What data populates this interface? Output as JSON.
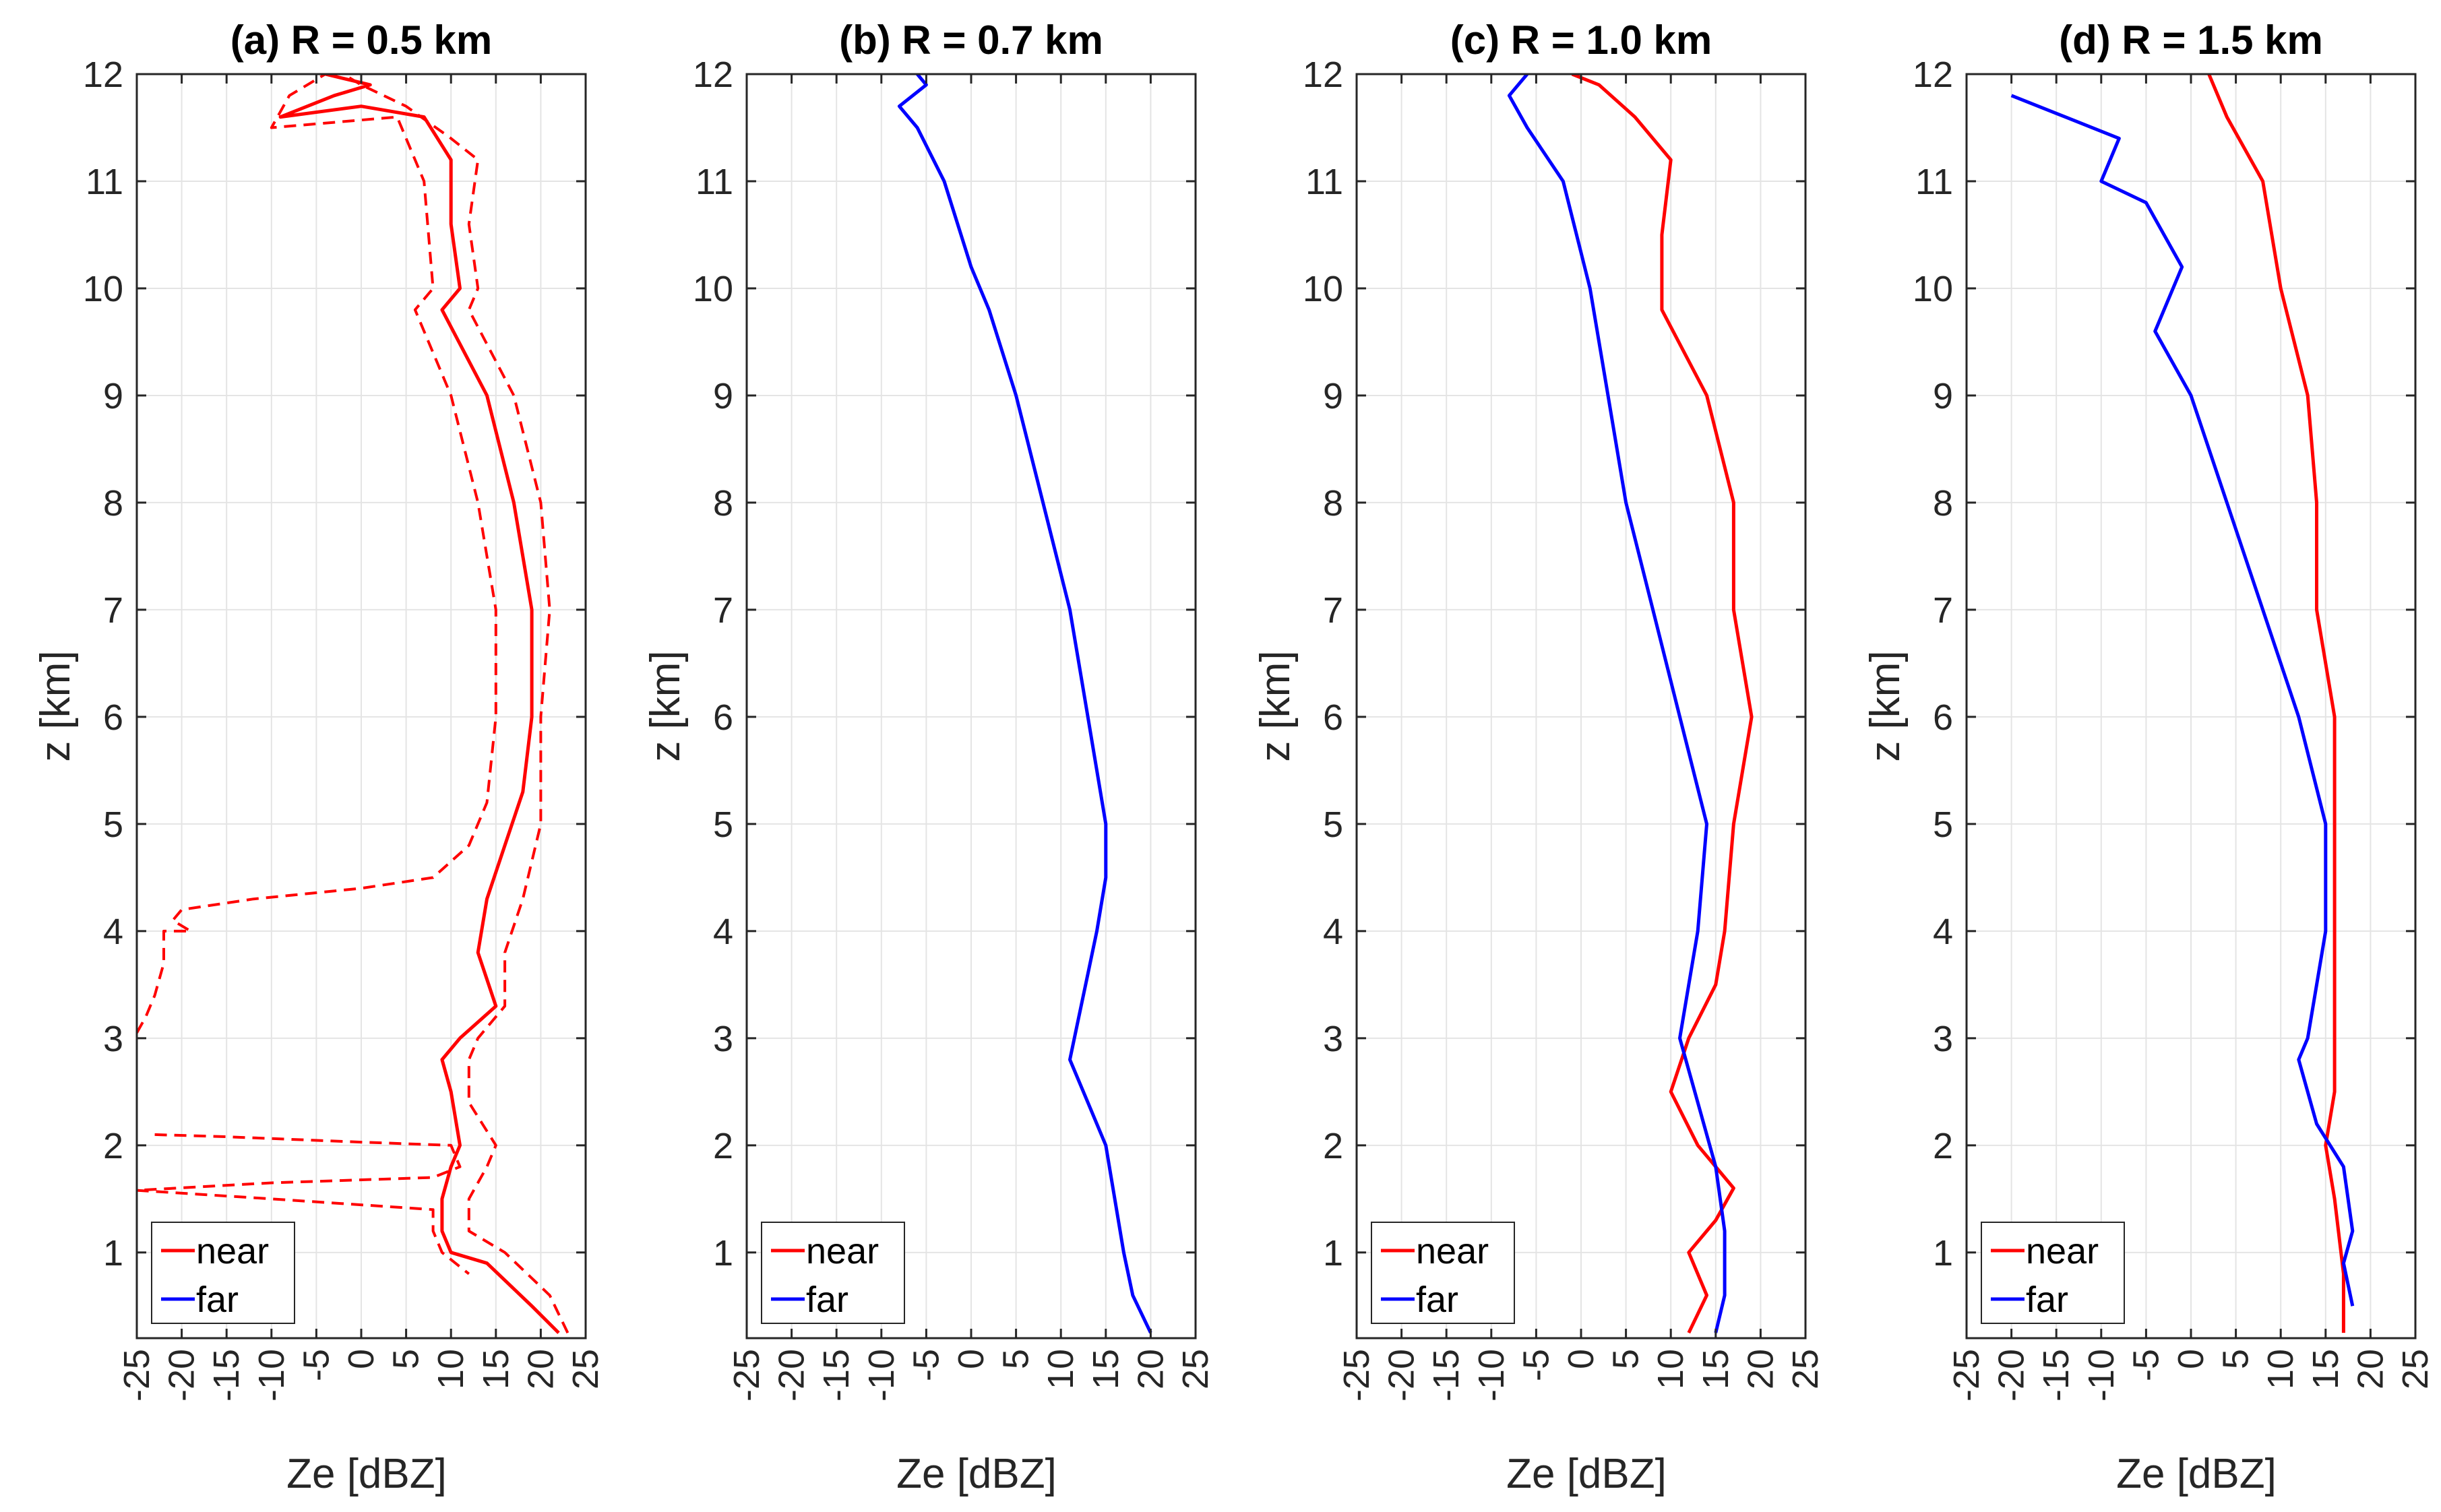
{
  "figure_colors": {
    "near": "#ff0000",
    "far": "#0000ff",
    "grid": "#e4e4e4",
    "axis": "#262626"
  },
  "chart_data": [
    {
      "type": "line",
      "title": "(a) R = 0.5 km",
      "xlabel": "Ze [dBZ]",
      "ylabel": "z [km]",
      "xlim": [
        -25,
        25
      ],
      "ylim": [
        0.2,
        12
      ],
      "xticks": [
        "-25",
        "-20",
        "-15",
        "-10",
        "-5",
        "0",
        "5",
        "10",
        "15",
        "20",
        "25"
      ],
      "yticks": [
        "1",
        "2",
        "3",
        "4",
        "5",
        "6",
        "7",
        "8",
        "9",
        "10",
        "11",
        "12"
      ],
      "grid": true,
      "legend_position": "bottom-left",
      "legend": [
        "near",
        "far"
      ],
      "series": [
        {
          "name": "near",
          "style": "solid",
          "color": "#ff0000",
          "points": [
            [
              22,
              0.25
            ],
            [
              19,
              0.5
            ],
            [
              14,
              0.9
            ],
            [
              10,
              1.0
            ],
            [
              9,
              1.2
            ],
            [
              9,
              1.5
            ],
            [
              10,
              1.8
            ],
            [
              11,
              2.0
            ],
            [
              10,
              2.5
            ],
            [
              9,
              2.8
            ],
            [
              11,
              3.0
            ],
            [
              15,
              3.3
            ],
            [
              13,
              3.8
            ],
            [
              14,
              4.3
            ],
            [
              16,
              4.8
            ],
            [
              18,
              5.3
            ],
            [
              19,
              6.0
            ],
            [
              19,
              7.0
            ],
            [
              17,
              8.0
            ],
            [
              14,
              9.0
            ],
            [
              9,
              9.8
            ],
            [
              11,
              10.0
            ],
            [
              10,
              10.6
            ],
            [
              10,
              11.2
            ],
            [
              7,
              11.6
            ],
            [
              0,
              11.7
            ],
            [
              -9,
              11.6
            ],
            [
              -3,
              11.8
            ],
            [
              1,
              11.9
            ],
            [
              -4,
              12
            ]
          ]
        },
        {
          "name": "near",
          "style": "dashed",
          "color": "#ff0000",
          "points": [
            [
              23,
              0.25
            ],
            [
              21,
              0.6
            ],
            [
              16,
              1.0
            ],
            [
              12,
              1.2
            ],
            [
              12,
              1.5
            ],
            [
              14,
              1.8
            ],
            [
              15,
              2.0
            ],
            [
              12,
              2.4
            ],
            [
              12,
              2.8
            ],
            [
              13,
              3.0
            ],
            [
              16,
              3.3
            ],
            [
              16,
              3.8
            ],
            [
              18,
              4.3
            ],
            [
              20,
              5.0
            ],
            [
              20,
              6.0
            ],
            [
              21,
              7.0
            ],
            [
              20,
              8.0
            ],
            [
              17,
              9.0
            ],
            [
              12,
              9.8
            ],
            [
              13,
              10.0
            ],
            [
              12,
              10.6
            ],
            [
              13,
              11.2
            ],
            [
              10,
              11.4
            ],
            [
              5,
              11.7
            ],
            [
              0,
              11.9
            ],
            [
              -2,
              12
            ]
          ]
        },
        {
          "name": "near",
          "style": "dashed",
          "color": "#ff0000",
          "points": [
            [
              -25,
              3.05
            ],
            [
              -24,
              3.2
            ],
            [
              -23,
              3.4
            ],
            [
              -22,
              3.7
            ],
            [
              -22,
              4.0
            ],
            [
              -19,
              4.0
            ],
            [
              -21,
              4.1
            ],
            [
              -20,
              4.2
            ],
            [
              -12,
              4.3
            ],
            [
              0,
              4.4
            ],
            [
              8,
              4.5
            ],
            [
              12,
              4.8
            ],
            [
              14,
              5.2
            ],
            [
              15,
              6.0
            ],
            [
              15,
              7.0
            ],
            [
              13,
              8.0
            ],
            [
              10,
              9.0
            ],
            [
              6,
              9.8
            ],
            [
              8,
              10.0
            ],
            [
              7,
              11.0
            ],
            [
              4,
              11.6
            ],
            [
              -10,
              11.5
            ],
            [
              -8,
              11.8
            ],
            [
              -4,
              12
            ]
          ]
        },
        {
          "name": "near",
          "style": "dashed",
          "color": "#ff0000",
          "points": [
            [
              -23,
              2.1
            ],
            [
              -15,
              2.08
            ],
            [
              0,
              2.03
            ],
            [
              10,
              2.0
            ],
            [
              11,
              1.8
            ],
            [
              8,
              1.7
            ],
            [
              -10,
              1.65
            ],
            [
              -25,
              1.58
            ],
            [
              -10,
              1.5
            ],
            [
              8,
              1.4
            ],
            [
              8,
              1.2
            ],
            [
              9,
              1.0
            ],
            [
              12,
              0.8
            ]
          ]
        }
      ]
    },
    {
      "type": "line",
      "title": "(b) R = 0.7 km",
      "xlabel": "Ze [dBZ]",
      "ylabel": "z [km]",
      "xlim": [
        -25,
        25
      ],
      "ylim": [
        0.2,
        12
      ],
      "xticks": [
        "-25",
        "-20",
        "-15",
        "-10",
        "-5",
        "0",
        "5",
        "10",
        "15",
        "20",
        "25"
      ],
      "yticks": [
        "1",
        "2",
        "3",
        "4",
        "5",
        "6",
        "7",
        "8",
        "9",
        "10",
        "11",
        "12"
      ],
      "grid": true,
      "legend_position": "bottom-left",
      "legend": [
        "near",
        "far"
      ],
      "series": [
        {
          "name": "far",
          "style": "solid",
          "color": "#0000ff",
          "points": [
            [
              20,
              0.25
            ],
            [
              18,
              0.6
            ],
            [
              17,
              1.0
            ],
            [
              16,
              1.5
            ],
            [
              15,
              2.0
            ],
            [
              13,
              2.4
            ],
            [
              11,
              2.8
            ],
            [
              12,
              3.2
            ],
            [
              13,
              3.6
            ],
            [
              14,
              4.0
            ],
            [
              15,
              4.5
            ],
            [
              15,
              5.0
            ],
            [
              13,
              6.0
            ],
            [
              11,
              7.0
            ],
            [
              8,
              8.0
            ],
            [
              5,
              9.0
            ],
            [
              2,
              9.8
            ],
            [
              0,
              10.2
            ],
            [
              -3,
              11.0
            ],
            [
              -6,
              11.5
            ],
            [
              -8,
              11.7
            ],
            [
              -5,
              11.9
            ],
            [
              -6,
              12
            ]
          ]
        }
      ]
    },
    {
      "type": "line",
      "title": "(c) R = 1.0 km",
      "xlabel": "Ze [dBZ]",
      "ylabel": "z [km]",
      "xlim": [
        -25,
        25
      ],
      "ylim": [
        0.2,
        12
      ],
      "xticks": [
        "-25",
        "-20",
        "-15",
        "-10",
        "-5",
        "0",
        "5",
        "10",
        "15",
        "20",
        "25"
      ],
      "yticks": [
        "1",
        "2",
        "3",
        "4",
        "5",
        "6",
        "7",
        "8",
        "9",
        "10",
        "11",
        "12"
      ],
      "grid": true,
      "legend_position": "bottom-left",
      "legend": [
        "near",
        "far"
      ],
      "series": [
        {
          "name": "near",
          "style": "solid",
          "color": "#ff0000",
          "points": [
            [
              12,
              0.25
            ],
            [
              14,
              0.6
            ],
            [
              12,
              1.0
            ],
            [
              15,
              1.3
            ],
            [
              17,
              1.6
            ],
            [
              13,
              2.0
            ],
            [
              10,
              2.5
            ],
            [
              12,
              3.0
            ],
            [
              15,
              3.5
            ],
            [
              16,
              4.0
            ],
            [
              17,
              5.0
            ],
            [
              19,
              6.0
            ],
            [
              17,
              7.0
            ],
            [
              17,
              8.0
            ],
            [
              14,
              9.0
            ],
            [
              9,
              9.8
            ],
            [
              9,
              10.5
            ],
            [
              10,
              11.2
            ],
            [
              6,
              11.6
            ],
            [
              2,
              11.9
            ],
            [
              -1,
              12
            ]
          ]
        },
        {
          "name": "far",
          "style": "solid",
          "color": "#0000ff",
          "points": [
            [
              15,
              0.25
            ],
            [
              16,
              0.6
            ],
            [
              16,
              1.2
            ],
            [
              15,
              1.8
            ],
            [
              13,
              2.4
            ],
            [
              11,
              3.0
            ],
            [
              12,
              3.5
            ],
            [
              13,
              4.0
            ],
            [
              14,
              5.0
            ],
            [
              11,
              6.0
            ],
            [
              8,
              7.0
            ],
            [
              5,
              8.0
            ],
            [
              3,
              9.0
            ],
            [
              1,
              10.0
            ],
            [
              -2,
              11.0
            ],
            [
              -6,
              11.5
            ],
            [
              -8,
              11.8
            ],
            [
              -6,
              12
            ]
          ]
        }
      ]
    },
    {
      "type": "line",
      "title": "(d) R = 1.5 km",
      "xlabel": "Ze [dBZ]",
      "ylabel": "z [km]",
      "xlim": [
        -25,
        25
      ],
      "ylim": [
        0.2,
        12
      ],
      "xticks": [
        "-25",
        "-20",
        "-15",
        "-10",
        "-5",
        "0",
        "5",
        "10",
        "15",
        "20",
        "25"
      ],
      "yticks": [
        "1",
        "2",
        "3",
        "4",
        "5",
        "6",
        "7",
        "8",
        "9",
        "10",
        "11",
        "12"
      ],
      "grid": true,
      "legend_position": "bottom-left",
      "legend": [
        "near",
        "far"
      ],
      "series": [
        {
          "name": "near",
          "style": "solid",
          "color": "#ff0000",
          "points": [
            [
              17,
              0.25
            ],
            [
              17,
              0.8
            ],
            [
              16,
              1.5
            ],
            [
              15,
              2.0
            ],
            [
              16,
              2.5
            ],
            [
              16,
              3.0
            ],
            [
              16,
              4.0
            ],
            [
              16,
              5.0
            ],
            [
              16,
              6.0
            ],
            [
              14,
              7.0
            ],
            [
              14,
              8.0
            ],
            [
              13,
              9.0
            ],
            [
              10,
              10.0
            ],
            [
              8,
              11.0
            ],
            [
              4,
              11.6
            ],
            [
              2,
              12
            ]
          ]
        },
        {
          "name": "far",
          "style": "solid",
          "color": "#0000ff",
          "points": [
            [
              18,
              0.5
            ],
            [
              17,
              0.9
            ],
            [
              18,
              1.2
            ],
            [
              17,
              1.8
            ],
            [
              14,
              2.2
            ],
            [
              12,
              2.8
            ],
            [
              13,
              3.0
            ],
            [
              14,
              3.5
            ],
            [
              15,
              4.0
            ],
            [
              15,
              5.0
            ],
            [
              12,
              6.0
            ],
            [
              8,
              7.0
            ],
            [
              4,
              8.0
            ],
            [
              0,
              9.0
            ],
            [
              -4,
              9.6
            ],
            [
              -1,
              10.2
            ],
            [
              -5,
              10.8
            ],
            [
              -10,
              11.0
            ],
            [
              -8,
              11.4
            ],
            [
              -14,
              11.6
            ],
            [
              -20,
              11.8
            ]
          ]
        }
      ]
    }
  ]
}
